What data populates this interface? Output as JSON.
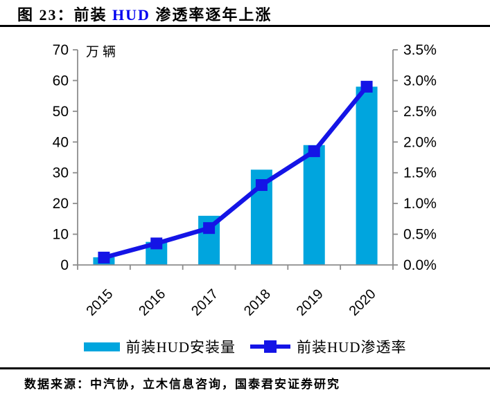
{
  "figure_title": {
    "prefix": "图 23：前装 ",
    "highlight": "HUD",
    "suffix": " 渗透率逐年上涨",
    "highlight_color": "#0000f0"
  },
  "chart_data": {
    "type": "bar+line combo",
    "categories": [
      "2015",
      "2016",
      "2017",
      "2018",
      "2019",
      "2020"
    ],
    "series": [
      {
        "name": "前装HUD安装量",
        "type": "bar",
        "axis": "left",
        "values": [
          2.5,
          7.5,
          16,
          31,
          39,
          58
        ]
      },
      {
        "name": "前装HUD渗透率",
        "type": "line",
        "axis": "right",
        "values": [
          0.12,
          0.35,
          0.6,
          1.3,
          1.85,
          2.9
        ]
      }
    ],
    "left_axis": {
      "unit": "万辆",
      "min": 0,
      "max": 70,
      "step": 10,
      "tick_labels": [
        "70",
        "60",
        "50",
        "40",
        "30",
        "20",
        "10",
        "0"
      ]
    },
    "right_axis": {
      "min": 0,
      "max": 3.5,
      "step": 0.5,
      "tick_labels": [
        "3.5%",
        "3.0%",
        "2.5%",
        "2.0%",
        "1.5%",
        "1.0%",
        "0.5%",
        "0.0%"
      ]
    },
    "grid": "off",
    "legend_position": "bottom",
    "colors": {
      "bar": "#00a5de",
      "line": "#1414e6",
      "axis": "#8c8c8c",
      "text": "#000000"
    }
  },
  "footer": {
    "source": "数据来源：中汽协，立木信息咨询，国泰君安证券研究"
  }
}
